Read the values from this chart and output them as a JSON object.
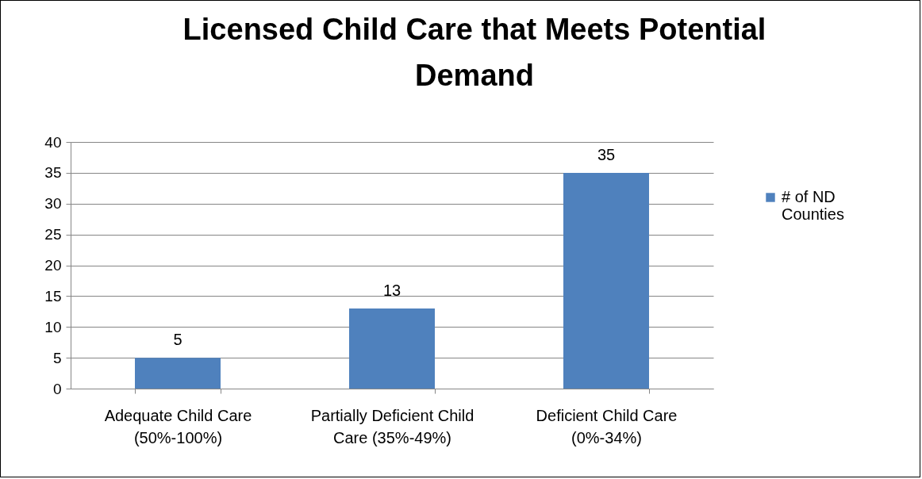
{
  "chart_data": {
    "type": "bar",
    "title": "Licensed Child Care that Meets Potential Demand",
    "categories": [
      "Adequate Child Care (50%-100%)",
      "Partially Deficient Child Care (35%-49%)",
      "Deficient Child Care (0%-34%)"
    ],
    "series": [
      {
        "name": "# of ND Counties",
        "color": "#4f81bd",
        "values": [
          5,
          13,
          35
        ]
      }
    ],
    "ylim": [
      0,
      40
    ],
    "yticks": [
      0,
      5,
      10,
      15,
      20,
      25,
      30,
      35,
      40
    ],
    "grid": "y",
    "legend": "right",
    "data_labels": true
  }
}
